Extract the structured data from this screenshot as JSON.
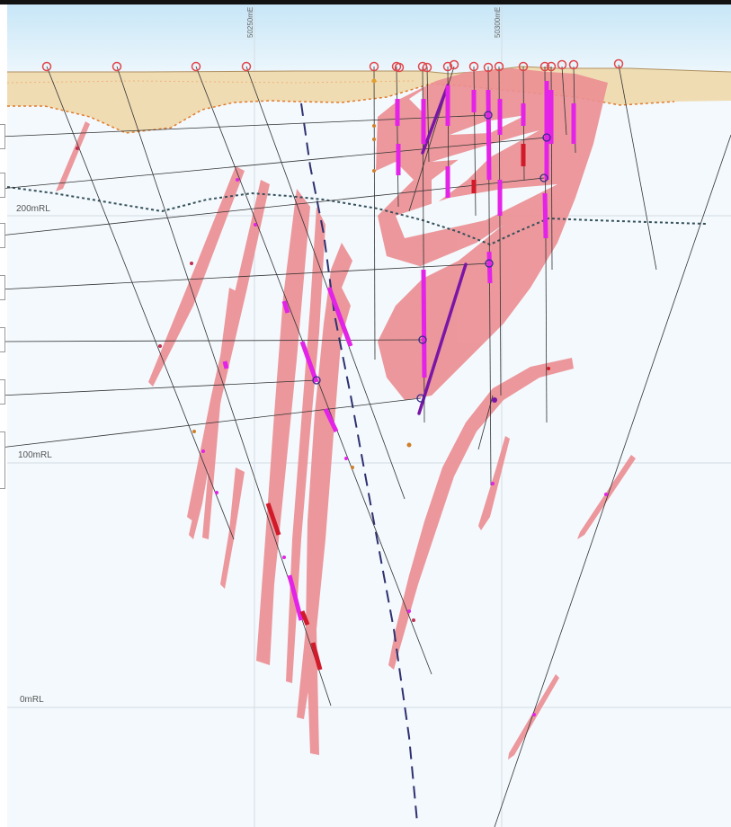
{
  "section": {
    "rl_labels": [
      "200mRL",
      "100mRL",
      "0mRL"
    ],
    "easting_labels": [
      "50250mE",
      "50300mE"
    ]
  },
  "colors": {
    "sky": "#d7eefa",
    "background": "#f3f9fd",
    "cover": "#efd7a6",
    "lode": "#ec8f94",
    "assay_magenta": "#e323e7",
    "assay_red": "#d11a2a",
    "collar": "#e0474c",
    "fault": "#2f3070",
    "oxidation": "#35505a",
    "trace": "#333333",
    "grid": "#d4dde4"
  }
}
